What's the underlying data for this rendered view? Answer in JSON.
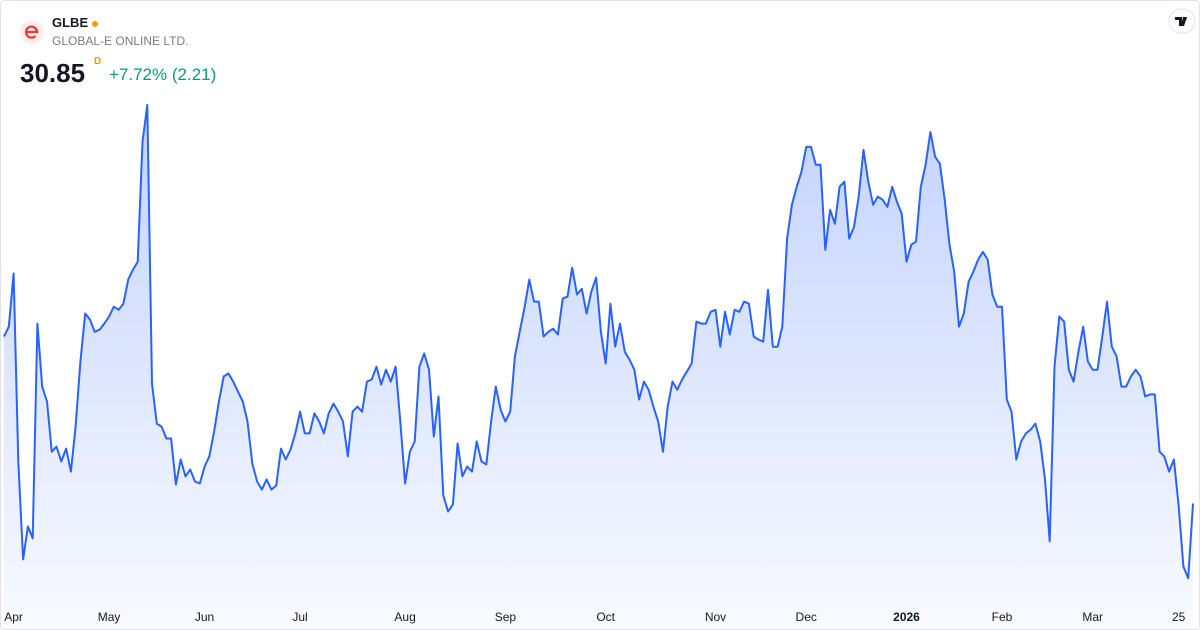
{
  "header": {
    "symbol": "GLBE",
    "name": "GLOBAL-E ONLINE LTD.",
    "price": 30.85,
    "interval": "D",
    "change": "+7.72% (2.21)"
  },
  "chart_data": {
    "type": "line",
    "xlim": [
      0,
      249
    ],
    "ylim": [
      28,
      43
    ],
    "xticks": [
      {
        "value": 2,
        "label": "Apr"
      },
      {
        "value": 22,
        "label": "May"
      },
      {
        "value": 42,
        "label": "Jun"
      },
      {
        "value": 62,
        "label": "Jul"
      },
      {
        "value": 84,
        "label": "Aug"
      },
      {
        "value": 105,
        "label": "Sep"
      },
      {
        "value": 126,
        "label": "Oct"
      },
      {
        "value": 149,
        "label": "Nov"
      },
      {
        "value": 168,
        "label": "Dec"
      },
      {
        "value": 189,
        "label": "2026"
      },
      {
        "value": 209,
        "label": "Feb"
      },
      {
        "value": 228,
        "label": "Mar"
      },
      {
        "value": 246,
        "label": "25"
      }
    ],
    "series": [
      {
        "color": "#2962ff",
        "values": [
          35.78,
          36.07,
          37.64,
          32.09,
          29.2,
          30.17,
          29.82,
          36.16,
          34.3,
          33.86,
          32.38,
          32.53,
          32.09,
          32.47,
          31.79,
          33.12,
          35.04,
          36.46,
          36.28,
          35.92,
          35.98,
          36.16,
          36.37,
          36.66,
          36.57,
          36.75,
          37.46,
          37.75,
          37.99,
          41.53,
          42.62,
          34.39,
          33.21,
          33.12,
          32.77,
          32.77,
          31.41,
          32.15,
          31.65,
          31.85,
          31.5,
          31.44,
          31.94,
          32.24,
          32.97,
          33.86,
          34.6,
          34.69,
          34.45,
          34.15,
          33.86,
          33.27,
          32.03,
          31.5,
          31.26,
          31.56,
          31.26,
          31.38,
          32.47,
          32.15,
          32.44,
          32.92,
          33.56,
          32.92,
          32.92,
          33.51,
          33.27,
          32.92,
          33.51,
          33.8,
          33.56,
          33.27,
          32.24,
          33.56,
          33.71,
          33.56,
          34.45,
          34.51,
          34.89,
          34.36,
          34.8,
          34.45,
          34.89,
          33.27,
          31.44,
          32.38,
          32.68,
          34.89,
          35.28,
          34.8,
          32.83,
          34.01,
          31.09,
          30.61,
          30.82,
          32.62,
          31.65,
          31.94,
          31.79,
          32.68,
          32.09,
          32.0,
          33.27,
          34.3,
          33.62,
          33.27,
          33.56,
          35.19,
          35.92,
          36.63,
          37.46,
          36.81,
          36.81,
          35.78,
          35.92,
          36.01,
          35.84,
          36.9,
          36.96,
          37.81,
          37.02,
          37.19,
          36.46,
          37.1,
          37.52,
          35.92,
          34.98,
          36.75,
          35.48,
          36.16,
          35.33,
          35.1,
          34.8,
          33.92,
          34.45,
          34.21,
          33.71,
          33.27,
          32.38,
          33.71,
          34.45,
          34.21,
          34.51,
          34.74,
          34.98,
          36.22,
          36.16,
          36.16,
          36.51,
          36.57,
          35.48,
          36.51,
          35.84,
          36.57,
          36.51,
          36.81,
          36.75,
          35.78,
          35.69,
          35.63,
          37.16,
          35.48,
          35.48,
          36.07,
          38.67,
          39.67,
          40.2,
          40.64,
          41.38,
          41.38,
          40.85,
          40.85,
          38.34,
          39.52,
          39.11,
          40.2,
          40.35,
          38.67,
          39.02,
          39.91,
          41.29,
          40.35,
          39.67,
          39.91,
          39.82,
          39.61,
          40.2,
          39.76,
          39.41,
          37.99,
          38.49,
          38.58,
          40.2,
          40.85,
          41.82,
          41.09,
          40.88,
          39.82,
          38.49,
          37.69,
          36.07,
          36.46,
          37.4,
          37.69,
          38.05,
          38.28,
          38.05,
          37.02,
          36.66,
          36.66,
          33.92,
          33.56,
          32.15,
          32.68,
          32.92,
          33.03,
          33.21,
          32.68,
          31.56,
          29.73,
          34.89,
          36.37,
          36.22,
          34.8,
          34.45,
          35.33,
          36.07,
          35.04,
          34.8,
          34.8,
          35.78,
          36.81,
          35.48,
          35.19,
          34.3,
          34.3,
          34.6,
          34.8,
          34.6,
          34.01,
          34.07,
          34.07,
          32.38,
          32.24,
          31.79,
          32.15,
          30.76,
          28.99,
          28.64,
          30.85
        ]
      }
    ]
  }
}
